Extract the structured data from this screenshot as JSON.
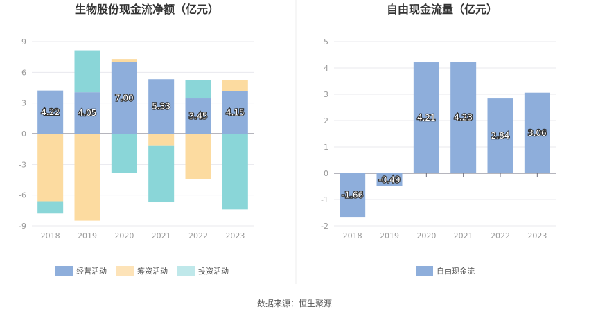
{
  "source_text": "数据来源：恒生聚源",
  "chart_data": [
    {
      "type": "bar",
      "stacked": true,
      "title": "生物股份现金流净额（亿元）",
      "categories": [
        "2018",
        "2019",
        "2020",
        "2021",
        "2022",
        "2023"
      ],
      "ylim": [
        -9,
        9
      ],
      "yticks": [
        9,
        6,
        3,
        0,
        -3,
        -6,
        -9
      ],
      "grid": true,
      "legend_position": "bottom",
      "series": [
        {
          "name": "经营活动",
          "color": "#8eaedb",
          "values": [
            4.22,
            4.05,
            7.0,
            5.33,
            3.45,
            4.15
          ],
          "labels": [
            "4.22",
            "4.05",
            "7.00",
            "5.33",
            "3.45",
            "4.15"
          ]
        },
        {
          "name": "筹资活动",
          "color": "#fcdba0",
          "values": [
            -6.6,
            -8.5,
            0.3,
            -1.2,
            -4.4,
            1.1
          ]
        },
        {
          "name": "投资活动",
          "color": "#8ad6d8",
          "values": [
            -1.2,
            4.1,
            -3.8,
            -5.5,
            1.8,
            -7.4
          ]
        }
      ],
      "legend": [
        {
          "name": "经营活动",
          "color": "#8eaedb"
        },
        {
          "name": "筹资活动",
          "color": "#fde3b8"
        },
        {
          "name": "投资活动",
          "color": "#bfe8ea"
        }
      ]
    },
    {
      "type": "bar",
      "title": "自由现金流量（亿元）",
      "categories": [
        "2018",
        "2019",
        "2020",
        "2021",
        "2022",
        "2023"
      ],
      "ylim": [
        -2,
        5
      ],
      "yticks": [
        5,
        4,
        3,
        2,
        1,
        0,
        -1,
        -2
      ],
      "grid": true,
      "legend_position": "bottom",
      "series": [
        {
          "name": "自由现金流",
          "color": "#8eaedb",
          "values": [
            -1.66,
            -0.49,
            4.21,
            4.23,
            2.84,
            3.06
          ],
          "labels": [
            "-1.66",
            "-0.49",
            "4.21",
            "4.23",
            "2.84",
            "3.06"
          ]
        }
      ]
    }
  ]
}
